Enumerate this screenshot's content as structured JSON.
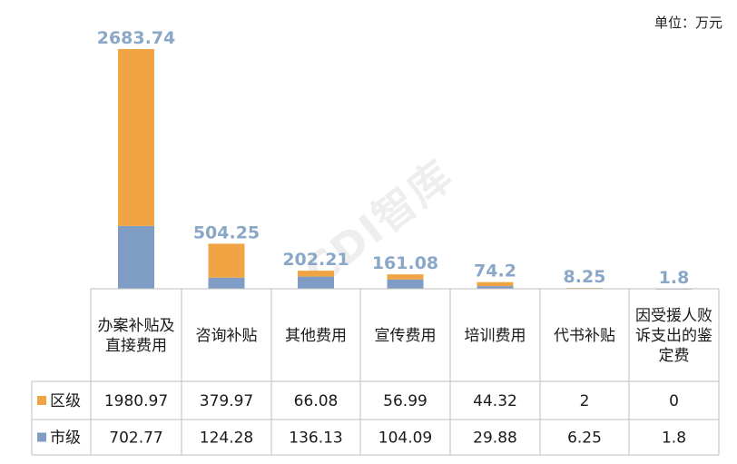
{
  "unit_label": "单位：万元",
  "watermark": "CDI智库",
  "colors": {
    "district": "#F0A444",
    "city": "#7F9DC4",
    "total_label": "#8BA7C7",
    "grid": "#BFBFBF"
  },
  "chart_data": {
    "type": "bar",
    "stacked": true,
    "categories": [
      [
        "办案补贴及",
        "直接费用"
      ],
      [
        "咨询补贴"
      ],
      [
        "其他费用"
      ],
      [
        "宣传费用"
      ],
      [
        "培训费用"
      ],
      [
        "代书补贴"
      ],
      [
        "因受援人败",
        "诉支出的鉴",
        "定费"
      ]
    ],
    "series": [
      {
        "name": "区级",
        "values": [
          1980.97,
          379.97,
          66.08,
          56.99,
          44.32,
          2,
          0
        ],
        "labels": [
          "1980.97",
          "379.97",
          "66.08",
          "56.99",
          "44.32",
          "2",
          "0"
        ]
      },
      {
        "name": "市级",
        "values": [
          702.77,
          124.28,
          136.13,
          104.09,
          29.88,
          6.25,
          1.8
        ],
        "labels": [
          "702.77",
          "124.28",
          "136.13",
          "104.09",
          "29.88",
          "6.25",
          "1.8"
        ]
      }
    ],
    "totals": [
      2683.74,
      504.25,
      202.21,
      161.08,
      74.2,
      8.25,
      1.8
    ],
    "total_labels": [
      "2683.74",
      "504.25",
      "202.21",
      "161.08",
      "74.2",
      "8.25",
      "1.8"
    ],
    "data_table": true
  }
}
